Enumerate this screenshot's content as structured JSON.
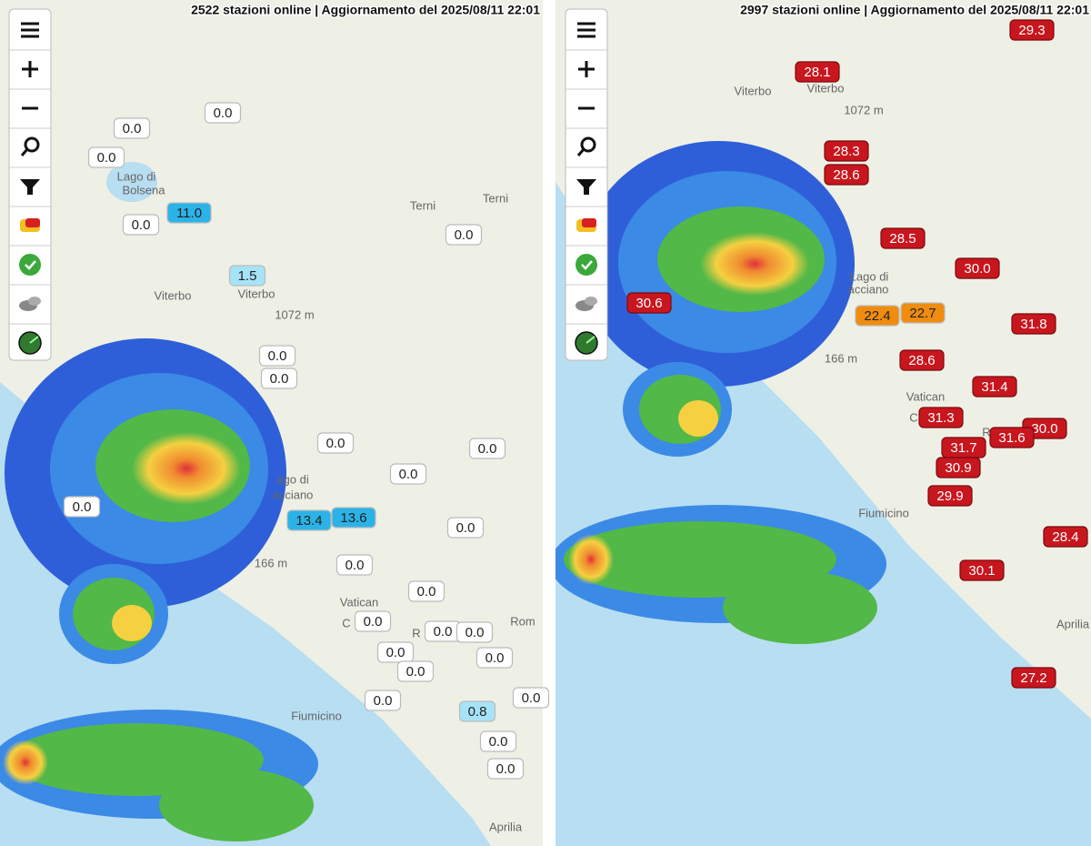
{
  "panels": [
    {
      "header": "2522 stazioni online | Aggiornamento del 2025/08/11 22:01",
      "station_color": "#ffffff",
      "places": [
        "Lago di",
        "Bolsena",
        "Terni",
        "Terni",
        "Viterbo",
        "Viterbo",
        "1072 m",
        "ago di",
        "acciano",
        "166 m",
        "Vatican",
        "C",
        "R",
        "Fiumicino",
        "Aprilia",
        "Rom"
      ],
      "stations": [
        {
          "label": "0.0"
        },
        {
          "label": "0.0"
        },
        {
          "label": "0.0"
        },
        {
          "label": "11.0",
          "color": "#2bb3e8"
        },
        {
          "label": "0.0"
        },
        {
          "label": "0.0"
        },
        {
          "label": "1.5",
          "color": "#a6e3f7"
        },
        {
          "label": "0.0"
        },
        {
          "label": "0.0"
        },
        {
          "label": "0.0"
        },
        {
          "label": "0.0"
        },
        {
          "label": "0.0"
        },
        {
          "label": "0.0"
        },
        {
          "label": "13.4",
          "color": "#2bb3e8"
        },
        {
          "label": "13.6",
          "color": "#2bb3e8"
        },
        {
          "label": "0.0"
        },
        {
          "label": "0.0"
        },
        {
          "label": "0.0"
        },
        {
          "label": "0.0"
        },
        {
          "label": "0.0"
        },
        {
          "label": "0.0"
        },
        {
          "label": "0.0"
        },
        {
          "label": "0.0"
        },
        {
          "label": "0.0"
        },
        {
          "label": "0.0"
        },
        {
          "label": "0.8",
          "color": "#a6e3f7"
        },
        {
          "label": "0.0"
        },
        {
          "label": "0.0"
        },
        {
          "label": "0.0"
        }
      ]
    },
    {
      "header": "2997 stazioni online | Aggiornamento del 2025/08/11 22:01",
      "station_color": "#c8161e",
      "places": [
        "Viterbo",
        "Viterbo",
        "1072 m",
        "Lago di",
        "acciano",
        "166 m",
        "Vatican",
        "C",
        "R",
        "Fiumicino",
        "Aprilia"
      ],
      "stations": [
        {
          "label": "28.1"
        },
        {
          "label": "29.3"
        },
        {
          "label": "28.3"
        },
        {
          "label": "28.6"
        },
        {
          "label": "28.5"
        },
        {
          "label": "30.0"
        },
        {
          "label": "30.6"
        },
        {
          "label": "22.4",
          "color": "#f08c10"
        },
        {
          "label": "22.7",
          "color": "#f08c10"
        },
        {
          "label": "31.8"
        },
        {
          "label": "28.6"
        },
        {
          "label": "31.4"
        },
        {
          "label": "31.3"
        },
        {
          "label": "30.0"
        },
        {
          "label": "31.7"
        },
        {
          "label": "31.6"
        },
        {
          "label": "30.9"
        },
        {
          "label": "29.9"
        },
        {
          "label": "28.4"
        },
        {
          "label": "30.1"
        },
        {
          "label": "27.2"
        }
      ]
    }
  ]
}
